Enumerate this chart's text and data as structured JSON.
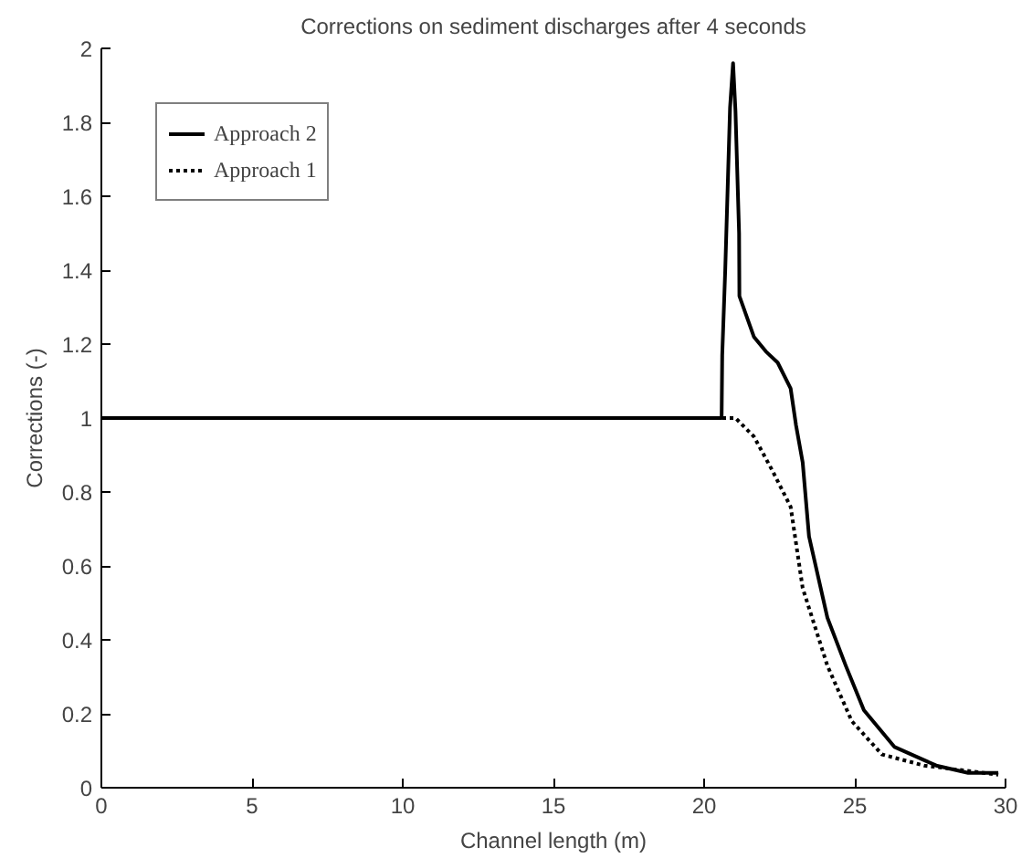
{
  "chart_data": {
    "type": "line",
    "title": "Corrections on sediment discharges after 4 seconds",
    "xlabel": "Channel length (m)",
    "ylabel": "Corrections (-)",
    "xlim": [
      0,
      30
    ],
    "ylim": [
      0,
      2
    ],
    "xticks": [
      0,
      5,
      10,
      15,
      20,
      25,
      30
    ],
    "yticks": [
      0,
      0.2,
      0.4,
      0.6,
      0.8,
      1,
      1.2,
      1.4,
      1.6,
      1.8,
      2
    ],
    "grid": false,
    "legend": "top left",
    "series": [
      {
        "name": "Approach 2",
        "color": "#000000",
        "line_style": "solid",
        "x": [
          0,
          20.58,
          20.6,
          20.7,
          20.78,
          20.86,
          20.96,
          21.04,
          21.16,
          21.17,
          21.65,
          22.05,
          22.44,
          22.87,
          23.05,
          23.27,
          23.48,
          24.09,
          24.7,
          25.3,
          26.32,
          27.7,
          28.76,
          29.76
        ],
        "values": [
          1,
          1,
          1.17,
          1.4,
          1.62,
          1.84,
          1.96,
          1.83,
          1.5,
          1.33,
          1.22,
          1.18,
          1.15,
          1.08,
          0.98,
          0.88,
          0.68,
          0.46,
          0.33,
          0.21,
          0.11,
          0.06,
          0.04,
          0.04
        ]
      },
      {
        "name": "Approach 1",
        "color": "#000000",
        "line_style": "dotted",
        "x": [
          0,
          20.8,
          21.04,
          21.65,
          22.25,
          22.87,
          23.27,
          24.09,
          24.9,
          25.9,
          27.3,
          29.76
        ],
        "values": [
          1,
          1,
          1,
          0.95,
          0.86,
          0.76,
          0.54,
          0.33,
          0.18,
          0.09,
          0.06,
          0.035
        ]
      }
    ]
  }
}
